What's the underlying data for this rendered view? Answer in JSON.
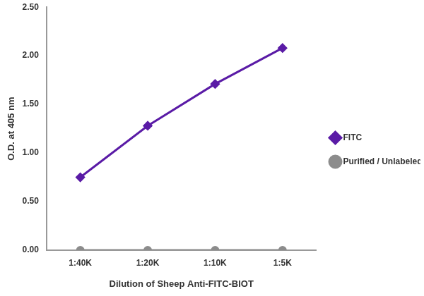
{
  "chart_data": {
    "type": "line",
    "x_label": "Dilution of Sheep Anti-FITC-BIOT",
    "y_label": "O.D. at 405 nm",
    "categories": [
      "1:40K",
      "1:20K",
      "1:10K",
      "1:5K"
    ],
    "series": [
      {
        "name": "FITC",
        "color": "#5a1ba6",
        "marker": "diamond",
        "line_style": "solid",
        "values": [
          0.75,
          1.28,
          1.71,
          2.08
        ]
      },
      {
        "name": "Purified / Unlabeled",
        "color": "#8c8c8c",
        "marker": "circle",
        "line_style": "solid",
        "values": [
          0,
          0,
          0,
          0
        ]
      }
    ],
    "ylim": [
      0,
      2.5
    ],
    "yticks": [
      {
        "value": 0,
        "label": "0.00"
      },
      {
        "value": 0.5,
        "label": "0.50"
      },
      {
        "value": 1,
        "label": "1.00"
      },
      {
        "value": 1.5,
        "label": "1.50"
      },
      {
        "value": 2,
        "label": "2.00"
      },
      {
        "value": 2.5,
        "label": "2.50"
      }
    ],
    "grid": false,
    "legend": "right"
  }
}
